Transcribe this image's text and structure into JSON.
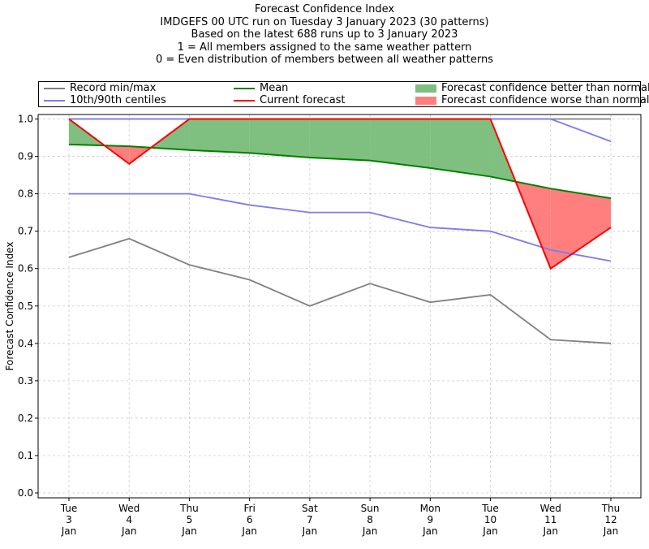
{
  "title_lines": [
    "Forecast Confidence Index",
    "IMDGEFS 00 UTC run on Tuesday 3 January 2023 (30 patterns)",
    "Based on the latest 688 runs up to 3 January 2023",
    "1 = All members assigned to the same weather pattern",
    "0 = Even distribution of members between all weather patterns"
  ],
  "legend": {
    "record": "Record min/max",
    "centiles": "10th/90th centiles",
    "mean": "Mean",
    "current": "Current forecast",
    "better": "Forecast confidence better than normal",
    "worse": "Forecast confidence worse than normal"
  },
  "colors": {
    "record": "#808080",
    "centiles": "#7b7bf7",
    "mean": "#008000",
    "current": "#ff0000",
    "better": "#7fbf7f",
    "worse": "#ff7f7f",
    "grid": "#cccccc"
  },
  "chart_data": {
    "type": "line",
    "title": "Forecast Confidence Index",
    "xlabel": "",
    "ylabel": "Forecast Confidence Index",
    "ylim": [
      0,
      1.0
    ],
    "grid": true,
    "legend_position": "top",
    "categories": [
      [
        "Tue",
        "3",
        "Jan"
      ],
      [
        "Wed",
        "4",
        "Jan"
      ],
      [
        "Thu",
        "5",
        "Jan"
      ],
      [
        "Fri",
        "6",
        "Jan"
      ],
      [
        "Sat",
        "7",
        "Jan"
      ],
      [
        "Sun",
        "8",
        "Jan"
      ],
      [
        "Mon",
        "9",
        "Jan"
      ],
      [
        "Tue",
        "10",
        "Jan"
      ],
      [
        "Wed",
        "11",
        "Jan"
      ],
      [
        "Thu",
        "12",
        "Jan"
      ]
    ],
    "yticks": [
      "0.0",
      "0.1",
      "0.2",
      "0.3",
      "0.4",
      "0.5",
      "0.6",
      "0.7",
      "0.8",
      "0.9",
      "1.0"
    ],
    "series": [
      {
        "name": "Record max",
        "key": "record",
        "values": [
          1.0,
          1.0,
          1.0,
          1.0,
          1.0,
          1.0,
          1.0,
          1.0,
          1.0,
          1.0
        ]
      },
      {
        "name": "Record min",
        "key": "record",
        "values": [
          0.63,
          0.68,
          0.61,
          0.57,
          0.5,
          0.56,
          0.51,
          0.53,
          0.41,
          0.4
        ]
      },
      {
        "name": "90th centile",
        "key": "centiles",
        "values": [
          1.0,
          1.0,
          1.0,
          1.0,
          1.0,
          1.0,
          1.0,
          1.0,
          1.0,
          0.94
        ]
      },
      {
        "name": "10th centile",
        "key": "centiles",
        "values": [
          0.8,
          0.8,
          0.8,
          0.77,
          0.75,
          0.75,
          0.71,
          0.7,
          0.65,
          0.62
        ]
      },
      {
        "name": "Mean",
        "key": "mean",
        "values": [
          0.932,
          0.927,
          0.917,
          0.909,
          0.897,
          0.889,
          0.869,
          0.846,
          0.814,
          0.788
        ]
      },
      {
        "name": "Current forecast",
        "key": "current",
        "values": [
          1.0,
          0.88,
          1.0,
          1.0,
          1.0,
          1.0,
          1.0,
          1.0,
          0.6,
          0.71
        ]
      }
    ]
  }
}
